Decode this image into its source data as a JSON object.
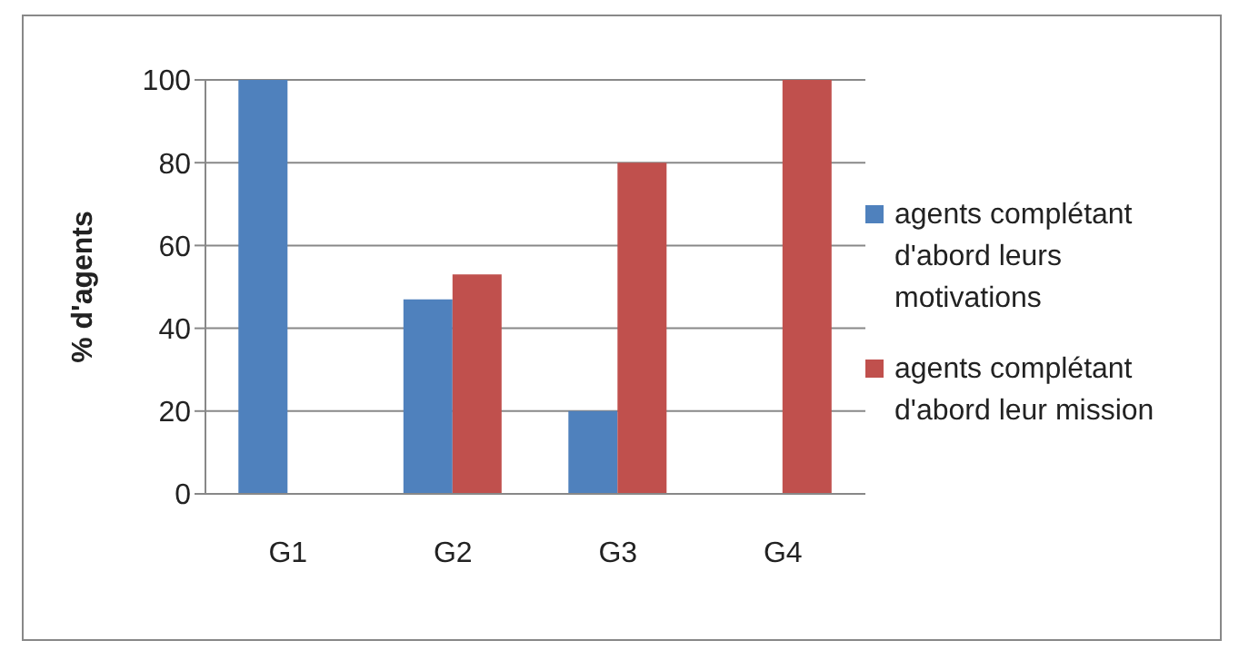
{
  "chart_data": {
    "type": "bar",
    "ylabel": "% d'agents",
    "categories": [
      "G1",
      "G2",
      "G3",
      "G4"
    ],
    "series": [
      {
        "name": "agents complétant d'abord leurs motivations",
        "color": "#4f81bd",
        "values": [
          100,
          47,
          20,
          0
        ]
      },
      {
        "name": "agents complétant d'abord leur mission",
        "color": "#c0504d",
        "values": [
          0,
          53,
          80,
          100
        ]
      }
    ],
    "ylim": [
      0,
      100
    ],
    "yticks": [
      0,
      20,
      40,
      60,
      80,
      100
    ],
    "grid": "y",
    "legend": "right"
  }
}
